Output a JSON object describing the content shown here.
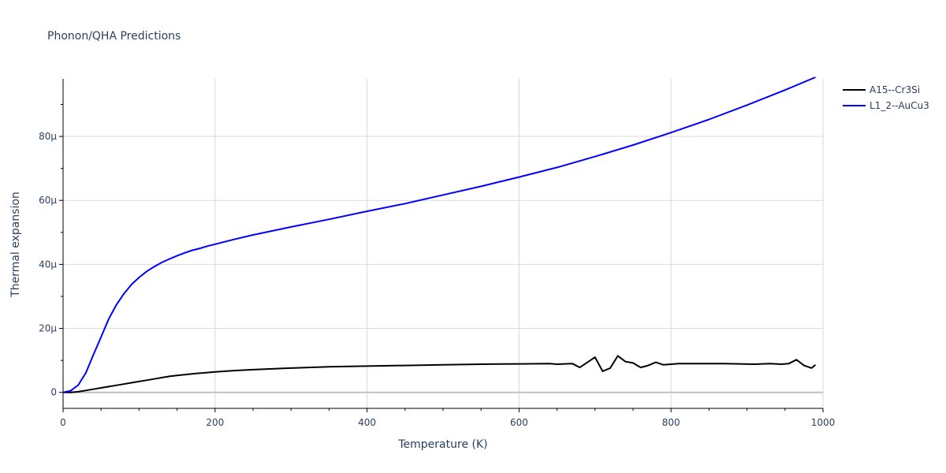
{
  "chart_data": {
    "type": "line",
    "title": "Phonon/QHA Predictions",
    "xlabel": "Temperature (K)",
    "ylabel": "Thermal expansion",
    "xlim": [
      0,
      1000
    ],
    "ylim": [
      -5e-06,
      9.8e-05
    ],
    "x_ticks": [
      0,
      200,
      400,
      600,
      800,
      1000
    ],
    "x_tick_labels": [
      "0",
      "200",
      "400",
      "600",
      "800",
      "1000"
    ],
    "y_ticks": [
      0,
      2e-05,
      4e-05,
      6e-05,
      8e-05
    ],
    "y_tick_labels": [
      "0",
      "20μ",
      "40μ",
      "60μ",
      "80μ"
    ],
    "grid": true,
    "legend_position": "top-right",
    "series": [
      {
        "name": "A15--Cr3Si",
        "color": "#000000",
        "x": [
          0,
          10,
          20,
          30,
          40,
          50,
          60,
          70,
          80,
          90,
          100,
          110,
          120,
          130,
          140,
          150,
          175,
          200,
          225,
          250,
          300,
          350,
          400,
          450,
          500,
          550,
          600,
          640,
          650,
          670,
          680,
          690,
          700,
          710,
          720,
          730,
          740,
          750,
          760,
          770,
          780,
          790,
          800,
          810,
          820,
          850,
          870,
          890,
          910,
          930,
          945,
          955,
          965,
          975,
          985,
          990
        ],
        "y": [
          0,
          0,
          2e-07,
          6e-07,
          1e-06,
          1.4e-06,
          1.8e-06,
          2.2e-06,
          2.6e-06,
          3e-06,
          3.4e-06,
          3.8e-06,
          4.2e-06,
          4.6e-06,
          5e-06,
          5.3e-06,
          5.9e-06,
          6.4e-06,
          6.8e-06,
          7.1e-06,
          7.6e-06,
          8e-06,
          8.2e-06,
          8.4e-06,
          8.6e-06,
          8.8e-06,
          8.9e-06,
          9e-06,
          8.8e-06,
          9e-06,
          7.8e-06,
          9.4e-06,
          1.1e-05,
          6.6e-06,
          7.6e-06,
          1.14e-05,
          9.6e-06,
          9.2e-06,
          7.8e-06,
          8.4e-06,
          9.4e-06,
          8.6e-06,
          8.8e-06,
          9e-06,
          9e-06,
          9e-06,
          9e-06,
          8.9e-06,
          8.8e-06,
          9e-06,
          8.8e-06,
          9e-06,
          1.02e-05,
          8.4e-06,
          7.6e-06,
          8.6e-06
        ]
      },
      {
        "name": "L1_2--AuCu3",
        "color": "#0000ff",
        "x": [
          0,
          10,
          20,
          30,
          40,
          50,
          60,
          70,
          80,
          90,
          100,
          110,
          120,
          130,
          140,
          150,
          160,
          170,
          180,
          190,
          200,
          225,
          250,
          300,
          350,
          400,
          450,
          500,
          550,
          600,
          650,
          700,
          750,
          800,
          850,
          900,
          950,
          990
        ],
        "y": [
          0,
          5e-07,
          2.3e-06,
          6.1e-06,
          1.18e-05,
          1.73e-05,
          2.29e-05,
          2.73e-05,
          3.08e-05,
          3.37e-05,
          3.59e-05,
          3.78e-05,
          3.93e-05,
          4.06e-05,
          4.17e-05,
          4.27e-05,
          4.36e-05,
          4.44e-05,
          4.5e-05,
          4.57e-05,
          4.63e-05,
          4.78e-05,
          4.92e-05,
          5.17e-05,
          5.41e-05,
          5.66e-05,
          5.9e-05,
          6.17e-05,
          6.44e-05,
          6.73e-05,
          7.03e-05,
          7.37e-05,
          7.73e-05,
          8.12e-05,
          8.53e-05,
          8.98e-05,
          9.45e-05,
          9.85e-05
        ]
      }
    ]
  }
}
